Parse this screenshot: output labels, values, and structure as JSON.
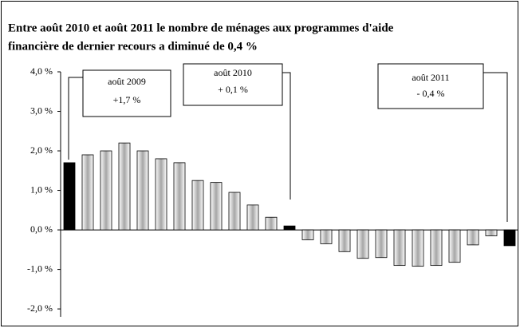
{
  "chart_data": {
    "type": "bar",
    "title": [
      "Entre août 2010 et août 2011 le nombre de ménages aux programmes d'aide",
      "financière de dernier recours a diminué de 0,4 %"
    ],
    "categories": [
      null,
      null,
      null,
      null,
      null,
      null,
      null,
      null,
      null,
      null,
      null,
      null,
      null,
      null,
      null,
      null,
      null,
      null,
      null,
      null,
      null,
      null,
      null,
      null,
      null
    ],
    "values": [
      1.7,
      1.9,
      2.0,
      2.2,
      2.0,
      1.8,
      1.7,
      1.25,
      1.2,
      0.95,
      0.63,
      0.32,
      0.1,
      -0.25,
      -0.35,
      -0.55,
      -0.72,
      -0.7,
      -0.9,
      -0.92,
      -0.9,
      -0.82,
      -0.38,
      -0.15,
      -0.4
    ],
    "colors": [
      "#000000",
      "#a6a6a6",
      "#a6a6a6",
      "#a6a6a6",
      "#a6a6a6",
      "#a6a6a6",
      "#a6a6a6",
      "#a6a6a6",
      "#a6a6a6",
      "#a6a6a6",
      "#a6a6a6",
      "#a6a6a6",
      "#000000",
      "#a6a6a6",
      "#a6a6a6",
      "#a6a6a6",
      "#a6a6a6",
      "#a6a6a6",
      "#a6a6a6",
      "#a6a6a6",
      "#a6a6a6",
      "#a6a6a6",
      "#a6a6a6",
      "#a6a6a6",
      "#000000"
    ],
    "ylim": [
      -2.2,
      4.0
    ],
    "yticks": [
      {
        "value": -2,
        "label": "-2,0 %"
      },
      {
        "value": -1,
        "label": "-1,0 %"
      },
      {
        "value": 0,
        "label": "0,0 %"
      },
      {
        "value": 1,
        "label": "1,0 %"
      },
      {
        "value": 2,
        "label": "2,0 %"
      },
      {
        "value": 3,
        "label": "3,0 %"
      },
      {
        "value": 4,
        "label": "4,0 %"
      }
    ],
    "annotations": [
      {
        "lines": [
          "août 2009",
          "+1,7 %"
        ]
      },
      {
        "lines": [
          "août 2010",
          "+ 0,1 %"
        ]
      },
      {
        "lines": [
          "août 2011",
          "- 0,4 %"
        ]
      }
    ]
  }
}
